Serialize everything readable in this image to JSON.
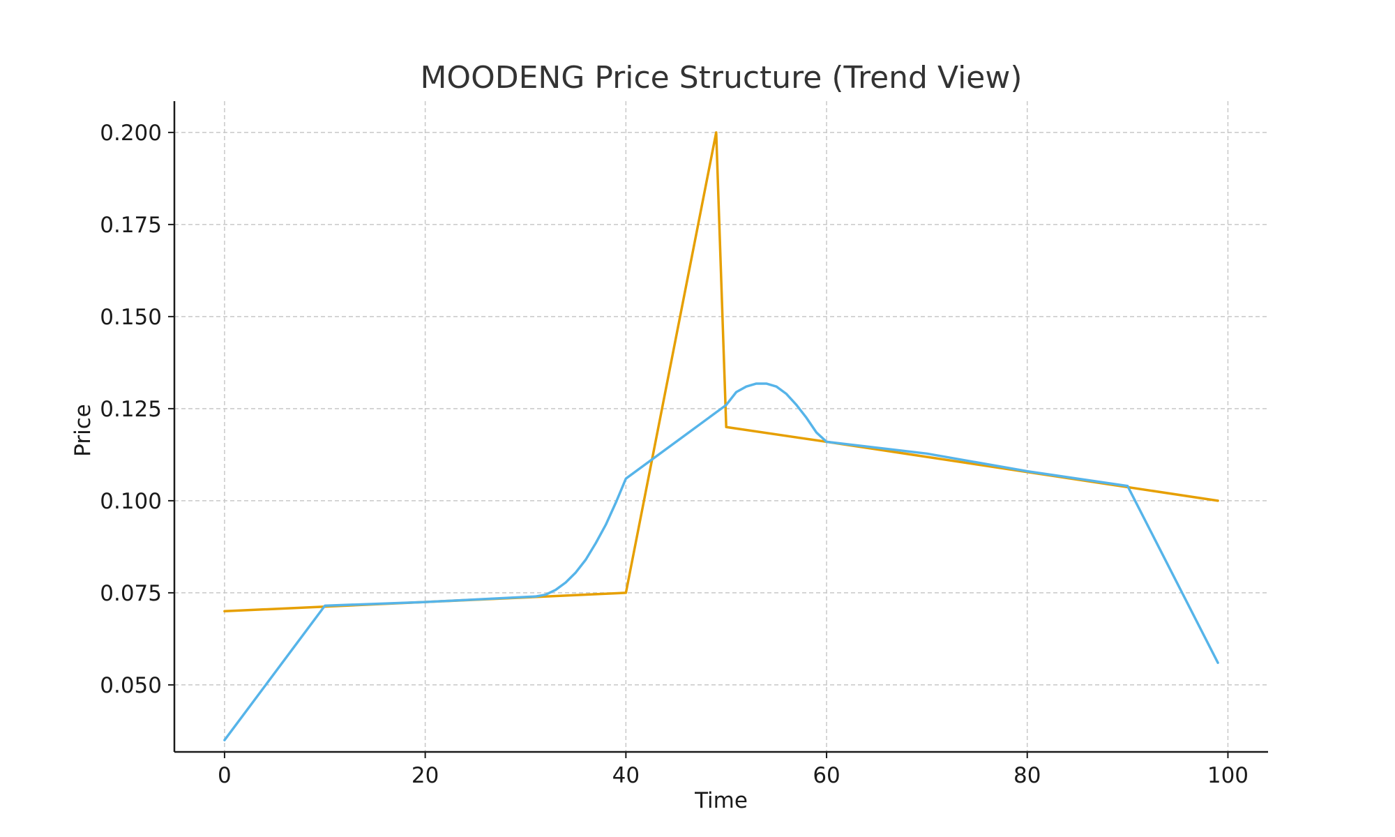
{
  "chart_data": {
    "type": "line",
    "title": "MOODENG Price Structure (Trend View)",
    "xlabel": "Time",
    "ylabel": "Price",
    "xlim": [
      -5,
      104
    ],
    "ylim": [
      0.0318,
      0.2085
    ],
    "x_ticks": [
      0,
      20,
      40,
      60,
      80,
      100
    ],
    "x_tick_labels": [
      "0",
      "20",
      "40",
      "60",
      "80",
      "100"
    ],
    "y_ticks": [
      0.05,
      0.075,
      0.1,
      0.125,
      0.15,
      0.175,
      0.2
    ],
    "y_tick_labels": [
      "0.050",
      "0.075",
      "0.100",
      "0.125",
      "0.150",
      "0.175",
      "0.200"
    ],
    "grid": true,
    "legend": "none",
    "series": [
      {
        "color": "#E69F00",
        "points": [
          [
            0,
            0.07
          ],
          [
            40,
            0.075
          ],
          [
            49,
            0.2
          ],
          [
            50,
            0.12
          ],
          [
            60,
            0.116
          ],
          [
            99,
            0.1
          ]
        ]
      },
      {
        "color": "#56B4E9",
        "points": [
          [
            0,
            0.035
          ],
          [
            10,
            0.0715
          ],
          [
            20,
            0.0725
          ],
          [
            31,
            0.074
          ],
          [
            32,
            0.0745
          ],
          [
            33,
            0.0758
          ],
          [
            34,
            0.0778
          ],
          [
            35,
            0.0805
          ],
          [
            36,
            0.084
          ],
          [
            37,
            0.0885
          ],
          [
            38,
            0.0935
          ],
          [
            39,
            0.0995
          ],
          [
            40,
            0.106
          ],
          [
            45,
            0.116
          ],
          [
            50,
            0.126
          ],
          [
            51,
            0.1295
          ],
          [
            52,
            0.131
          ],
          [
            53,
            0.1318
          ],
          [
            54,
            0.1318
          ],
          [
            55,
            0.131
          ],
          [
            56,
            0.129
          ],
          [
            57,
            0.126
          ],
          [
            58,
            0.1225
          ],
          [
            59,
            0.1185
          ],
          [
            60,
            0.116
          ],
          [
            70,
            0.1128
          ],
          [
            80,
            0.108
          ],
          [
            90,
            0.104
          ],
          [
            99,
            0.056
          ]
        ]
      }
    ]
  }
}
